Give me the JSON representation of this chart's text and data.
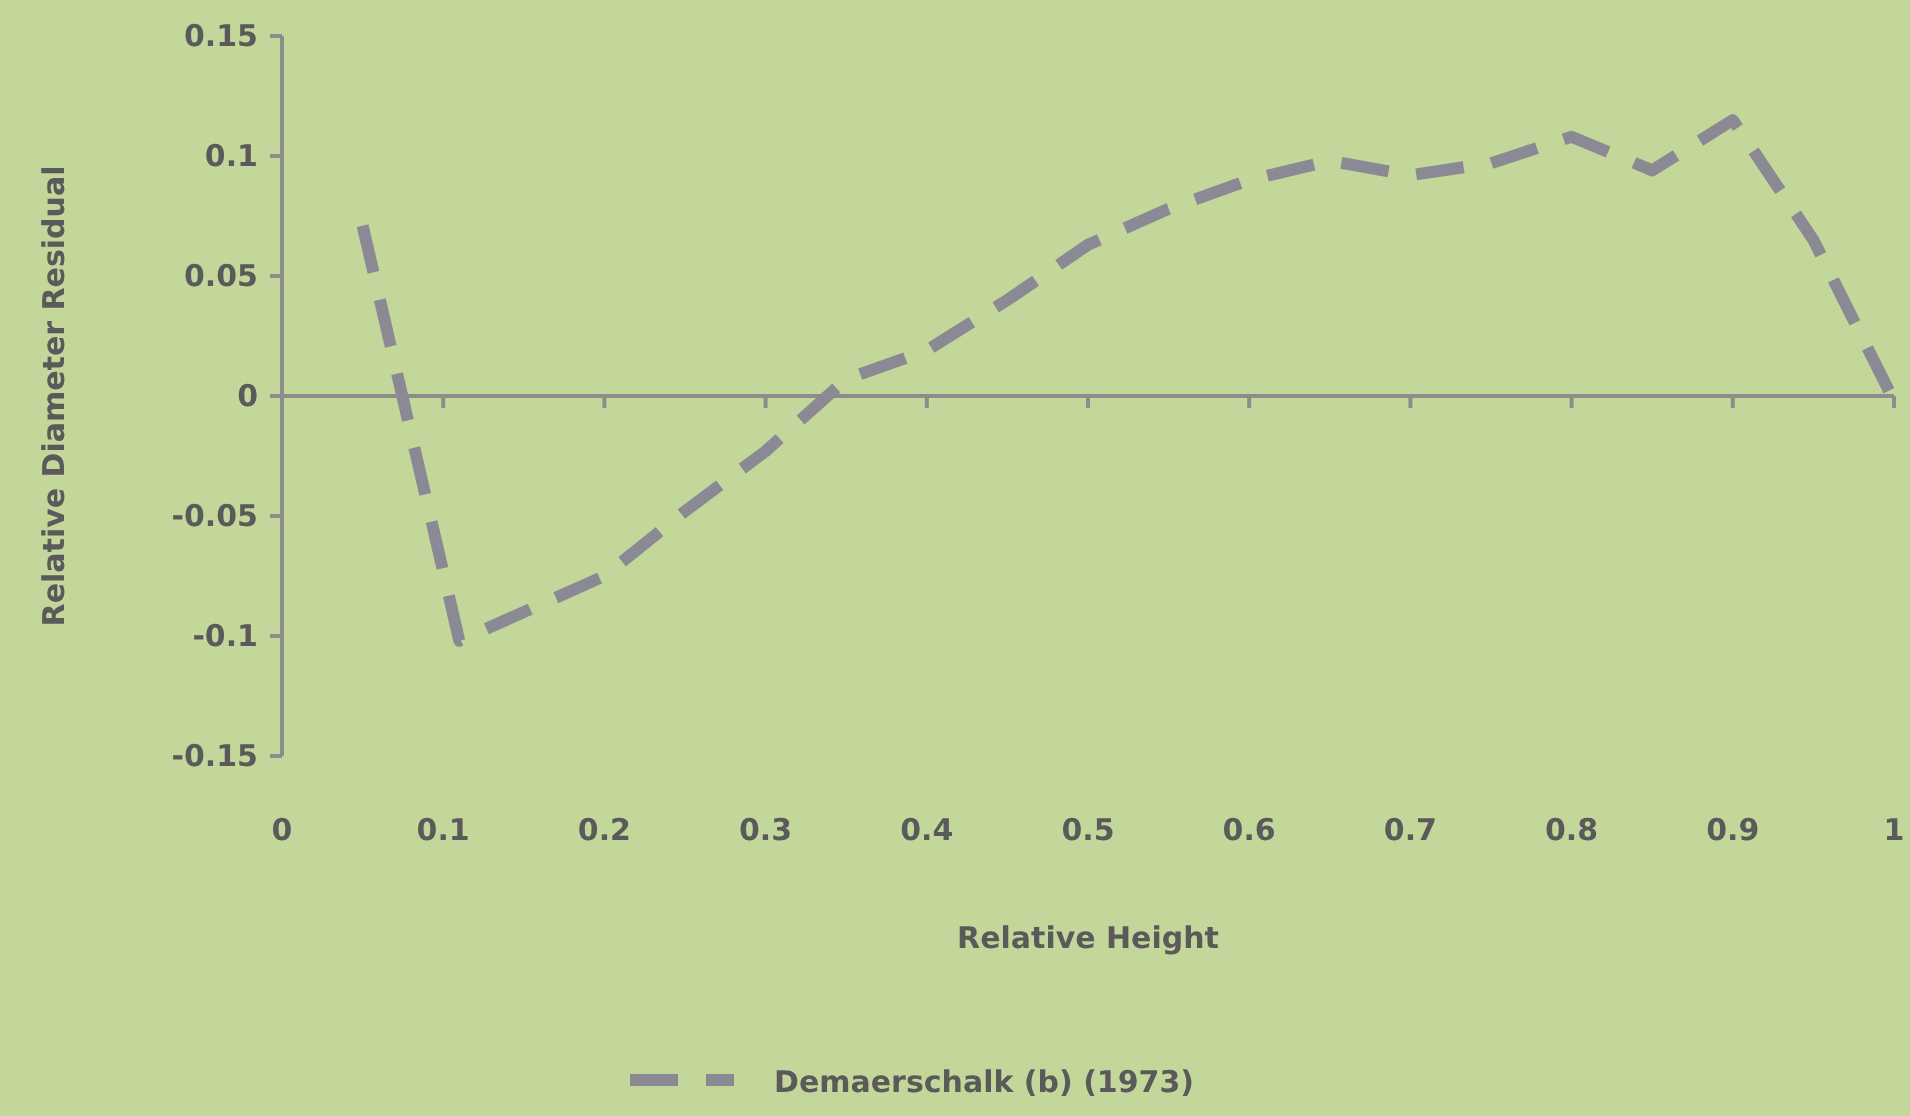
{
  "chart_data": {
    "type": "line",
    "xlabel": "Relative Height",
    "ylabel": "Relative Diameter Residual",
    "xlim": [
      0,
      1
    ],
    "xticks": [
      0,
      0.1,
      0.2,
      0.3,
      0.4,
      0.5,
      0.6,
      0.7,
      0.8,
      0.9,
      1
    ],
    "ylim": [
      -0.15,
      0.15
    ],
    "yticks": [
      -0.15,
      -0.1,
      -0.05,
      0,
      0.05,
      0.1,
      0.15
    ],
    "legend": "bottom",
    "line_style": "dashed",
    "marker": "none",
    "series": [
      {
        "name": "Demaerschalk (b) (1973)",
        "color": "#8b8a94",
        "x": [
          0.05,
          0.11,
          0.2,
          0.25,
          0.3,
          0.35,
          0.4,
          0.45,
          0.5,
          0.55,
          0.6,
          0.65,
          0.7,
          0.75,
          0.8,
          0.85,
          0.9,
          0.95,
          1.0
        ],
        "values": [
          0.071,
          -0.102,
          -0.075,
          -0.048,
          -0.023,
          0.007,
          0.019,
          0.04,
          0.063,
          0.078,
          0.09,
          0.098,
          0.092,
          0.097,
          0.108,
          0.094,
          0.115,
          0.065,
          -0.002
        ]
      }
    ]
  }
}
